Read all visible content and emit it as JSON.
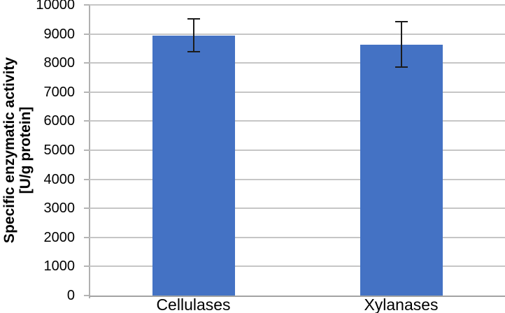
{
  "chart_data": {
    "type": "bar",
    "title": "",
    "categories": [
      "Cellulases",
      "Xylanases"
    ],
    "values": [
      8950,
      8640
    ],
    "error_bars": [
      560,
      790
    ],
    "ylabel_line1": "Specific enzymatic activity",
    "ylabel_line2": "[U/g protein]",
    "xlabel": "",
    "ylim": [
      0,
      10000
    ],
    "ytick_step": 1000,
    "yticks": [
      0,
      1000,
      2000,
      3000,
      4000,
      5000,
      6000,
      7000,
      8000,
      9000,
      10000
    ],
    "grid": "horizontal",
    "legend": "none",
    "bar_color": "#4472C4",
    "error_bar_color": "#1c1c1c",
    "gridline_color": "#c6c6c6",
    "axis_color": "#a3a3a3",
    "text_color": "#000000"
  }
}
